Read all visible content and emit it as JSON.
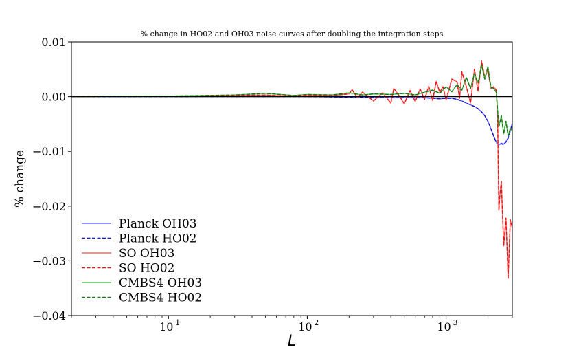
{
  "chart_data": {
    "type": "line",
    "title": "% change in HO02 and OH03 noise curves after doubling the integration steps",
    "xlabel": "L",
    "ylabel": "% change",
    "xscale": "log",
    "xlim": [
      2,
      3000
    ],
    "ylim": [
      -0.04,
      0.01
    ],
    "yticks": [
      {
        "value": 0.01,
        "label": "0.01"
      },
      {
        "value": 0.0,
        "label": "0.00"
      },
      {
        "value": -0.01,
        "label": "−0.01"
      },
      {
        "value": -0.02,
        "label": "−0.02"
      },
      {
        "value": -0.03,
        "label": "−0.03"
      },
      {
        "value": -0.04,
        "label": "−0.04"
      }
    ],
    "xticks": [
      {
        "value": 10,
        "base": "10",
        "exp": "1"
      },
      {
        "value": 100,
        "base": "10",
        "exp": "2"
      },
      {
        "value": 1000,
        "base": "10",
        "exp": "3"
      }
    ],
    "hline": 0.0,
    "legend_position": "lower-left",
    "colors": {
      "planck": "#0000ff",
      "so": "#ff0000",
      "cmbs4": "#008000",
      "zero": "#000000"
    },
    "series": [
      {
        "name": "Planck OH03",
        "color": "#6a6aff",
        "dash": "solid",
        "x": [
          2,
          10,
          50,
          100,
          200,
          400,
          700,
          900,
          1000,
          1100,
          1200,
          1300,
          1400,
          1500,
          1600,
          1700,
          1800,
          1900,
          2000,
          2100,
          2200,
          2300,
          2400,
          2500,
          2600,
          2700,
          2800,
          2900,
          3000
        ],
        "y": [
          0.0,
          0.0,
          0.0,
          0.0,
          -0.0001,
          -0.0002,
          -0.0002,
          -0.0004,
          -0.0003,
          -0.0003,
          -0.0005,
          -0.0008,
          -0.0012,
          -0.0015,
          -0.0018,
          -0.0022,
          -0.0028,
          -0.0035,
          -0.0045,
          -0.0058,
          -0.0072,
          -0.0083,
          -0.0088,
          -0.0085,
          -0.0087,
          -0.0082,
          -0.0075,
          -0.0062,
          -0.0048
        ]
      },
      {
        "name": "Planck HO02",
        "color": "#1111cc",
        "dash": "dashed",
        "x": [
          2,
          10,
          50,
          100,
          200,
          400,
          700,
          900,
          1000,
          1100,
          1200,
          1300,
          1400,
          1500,
          1600,
          1700,
          1800,
          1900,
          2000,
          2100,
          2200,
          2300,
          2400,
          2500,
          2600,
          2700,
          2800,
          2900,
          3000
        ],
        "y": [
          0.0,
          0.0,
          0.0,
          0.0,
          -0.0001,
          -0.0002,
          -0.0002,
          -0.0004,
          -0.0003,
          -0.0003,
          -0.0005,
          -0.0008,
          -0.0012,
          -0.0015,
          -0.0018,
          -0.0022,
          -0.0028,
          -0.0035,
          -0.0045,
          -0.0058,
          -0.0072,
          -0.0084,
          -0.0089,
          -0.0086,
          -0.0088,
          -0.0083,
          -0.0076,
          -0.0063,
          -0.0049
        ]
      },
      {
        "name": "SO OH03",
        "color": "#ff6666",
        "dash": "solid",
        "x": [
          2,
          10,
          30,
          50,
          80,
          100,
          150,
          200,
          210,
          230,
          250,
          300,
          350,
          400,
          420,
          450,
          500,
          550,
          600,
          650,
          700,
          750,
          800,
          850,
          900,
          950,
          1000,
          1100,
          1200,
          1250,
          1300,
          1400,
          1500,
          1600,
          1700,
          1800,
          1900,
          2000,
          2100,
          2200,
          2300,
          2350,
          2400,
          2450,
          2500,
          2600,
          2700,
          2800,
          2900,
          3000
        ],
        "y": [
          0.0,
          0.0001,
          0.0002,
          0.0003,
          0.0,
          0.0002,
          0.0002,
          0.0005,
          0.0013,
          -0.0002,
          0.0008,
          -0.0008,
          0.0007,
          -0.0012,
          0.0015,
          0.0005,
          -0.0013,
          0.0011,
          -0.0009,
          0.0014,
          -0.0005,
          0.0019,
          -0.0007,
          0.0028,
          0.0008,
          0.0018,
          -0.0006,
          0.0032,
          0.0027,
          -0.0003,
          0.0045,
          0.0018,
          -0.0012,
          0.005,
          0.001,
          0.0065,
          0.0035,
          0.0048,
          0.0015,
          0.0018,
          0.0012,
          -0.0035,
          -0.0208,
          -0.0175,
          -0.0155,
          -0.0273,
          -0.0222,
          -0.0332,
          -0.0225,
          -0.024
        ]
      },
      {
        "name": "SO HO02",
        "color": "#ee1111",
        "dash": "dashed",
        "x": [
          2,
          10,
          30,
          50,
          80,
          100,
          150,
          200,
          210,
          230,
          250,
          300,
          350,
          400,
          420,
          450,
          500,
          550,
          600,
          650,
          700,
          750,
          800,
          850,
          900,
          950,
          1000,
          1100,
          1200,
          1250,
          1300,
          1400,
          1500,
          1600,
          1700,
          1800,
          1900,
          2000,
          2100,
          2200,
          2300,
          2350,
          2400,
          2450,
          2500,
          2600,
          2700,
          2800,
          2900,
          3000
        ],
        "y": [
          0.0,
          0.0001,
          0.0002,
          0.0003,
          0.0,
          0.0002,
          0.0002,
          0.0005,
          0.0013,
          -0.0002,
          0.0008,
          -0.0008,
          0.0007,
          -0.0012,
          0.0015,
          0.0005,
          -0.0013,
          0.0011,
          -0.0009,
          0.0014,
          -0.0005,
          0.0019,
          -0.0007,
          0.0028,
          0.0008,
          0.0018,
          -0.0006,
          0.0032,
          0.0027,
          -0.0003,
          0.0045,
          0.0018,
          -0.0012,
          0.005,
          0.001,
          0.0065,
          0.0035,
          0.0048,
          0.0015,
          0.0018,
          0.0012,
          -0.0035,
          -0.0208,
          -0.0175,
          -0.0155,
          -0.0273,
          -0.0222,
          -0.0332,
          -0.0225,
          -0.024
        ]
      },
      {
        "name": "CMBS4 OH03",
        "color": "#55bb55",
        "dash": "solid",
        "x": [
          2,
          10,
          30,
          50,
          80,
          100,
          150,
          200,
          250,
          300,
          400,
          500,
          600,
          700,
          800,
          900,
          1000,
          1100,
          1200,
          1300,
          1400,
          1500,
          1600,
          1700,
          1800,
          1900,
          2000,
          2100,
          2200,
          2300,
          2400,
          2500,
          2600,
          2700,
          2800,
          2900,
          3000
        ],
        "y": [
          0.0,
          0.0001,
          0.0003,
          0.0006,
          0.0002,
          0.0004,
          0.0003,
          0.0007,
          0.0003,
          0.0005,
          0.0004,
          0.0006,
          0.0003,
          0.0008,
          0.0012,
          0.0006,
          0.0018,
          0.0009,
          0.0022,
          0.0012,
          0.0035,
          0.0015,
          0.0042,
          0.0025,
          0.0058,
          0.0032,
          0.0055,
          0.0018,
          0.0015,
          0.0008,
          -0.0055,
          -0.0035,
          -0.0068,
          -0.0045,
          -0.0072,
          -0.0058,
          -0.0062
        ]
      },
      {
        "name": "CMBS4 HO02",
        "color": "#117711",
        "dash": "dashed",
        "x": [
          2,
          10,
          30,
          50,
          80,
          100,
          150,
          200,
          250,
          300,
          400,
          500,
          600,
          700,
          800,
          900,
          1000,
          1100,
          1200,
          1300,
          1400,
          1500,
          1600,
          1700,
          1800,
          1900,
          2000,
          2100,
          2200,
          2300,
          2400,
          2500,
          2600,
          2700,
          2800,
          2900,
          3000
        ],
        "y": [
          0.0,
          0.0001,
          0.0003,
          0.0006,
          0.0002,
          0.0004,
          0.0003,
          0.0007,
          0.0003,
          0.0005,
          0.0004,
          0.0006,
          0.0003,
          0.0008,
          0.0012,
          0.0006,
          0.0018,
          0.0009,
          0.0022,
          0.0012,
          0.0035,
          0.0015,
          0.0042,
          0.0025,
          0.0058,
          0.0032,
          0.0055,
          0.0018,
          0.0015,
          0.0008,
          -0.0055,
          -0.0035,
          -0.0068,
          -0.0045,
          -0.0072,
          -0.0058,
          -0.0062
        ]
      }
    ]
  }
}
